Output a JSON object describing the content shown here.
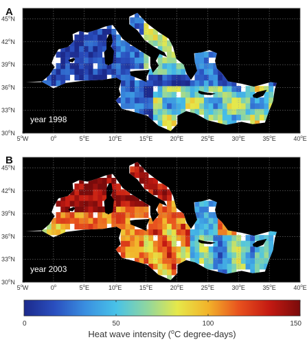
{
  "panels": [
    {
      "letter": "A",
      "year_label": "year 1998",
      "lat_ticks": [
        "30",
        "33",
        "36",
        "39",
        "42",
        "45"
      ],
      "lon_ticks": [
        {
          "v": "5",
          "d": "W"
        },
        {
          "v": "0",
          "d": ""
        },
        {
          "v": "5",
          "d": "E"
        },
        {
          "v": "10",
          "d": "E"
        },
        {
          "v": "15",
          "d": "E"
        },
        {
          "v": "20",
          "d": "E"
        },
        {
          "v": "25",
          "d": "E"
        },
        {
          "v": "30",
          "d": "E"
        },
        {
          "v": "35",
          "d": "E"
        },
        {
          "v": "40",
          "d": "E"
        }
      ]
    },
    {
      "letter": "B",
      "year_label": "year 2003",
      "lat_ticks": [
        "30",
        "33",
        "36",
        "39",
        "42",
        "45"
      ],
      "lon_ticks": [
        {
          "v": "5",
          "d": "W"
        },
        {
          "v": "0",
          "d": ""
        },
        {
          "v": "5",
          "d": "E"
        },
        {
          "v": "10",
          "d": "E"
        },
        {
          "v": "15",
          "d": "E"
        },
        {
          "v": "20",
          "d": "E"
        },
        {
          "v": "25",
          "d": "E"
        },
        {
          "v": "30",
          "d": "E"
        },
        {
          "v": "35",
          "d": "E"
        },
        {
          "v": "40",
          "d": "E"
        }
      ]
    }
  ],
  "lat_suffix": "N",
  "degree_symbol": "o",
  "colorbar": {
    "ticks": [
      "0",
      "50",
      "100",
      "150"
    ],
    "min": 0,
    "max": 150,
    "label_pre": "Heat wave intensity (",
    "label_sup": "o",
    "label_post": "C degree-days)",
    "colors": [
      "#1c2a8c",
      "#2a4fbf",
      "#3a8fe0",
      "#48c2e8",
      "#8fd6a0",
      "#e6e84a",
      "#f2b32a",
      "#e8521e",
      "#c41a12",
      "#7a0b0b"
    ]
  },
  "colors": {
    "land": "#000000",
    "sea_unsampled": "#ffffff",
    "grid": "#9a9a9a"
  }
}
